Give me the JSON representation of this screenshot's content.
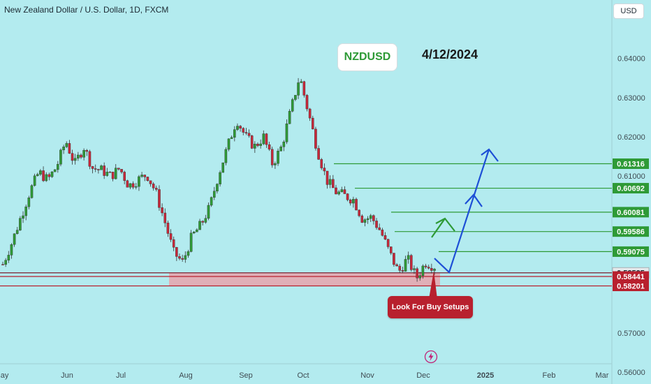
{
  "header": {
    "title": "New Zealand Dollar / U.S. Dollar, 1D, FXCM",
    "currency_button": "USD"
  },
  "annotations": {
    "symbol_label": "NZDUSD",
    "date_label": "4/12/2024",
    "callout": "Look For Buy Setups",
    "callout_color": "#b8202e",
    "target_line_color": "#2e9a36",
    "support_zone_color": "#e8a4ad",
    "projection_arrow_color": "#1d4fd6",
    "bolt_icon": "lightning-bolt-icon"
  },
  "chart_data": {
    "type": "candlestick",
    "y_axis": {
      "ylim": [
        0.5595,
        0.6435
      ],
      "tick_labels": [
        "0.64000",
        "0.63000",
        "0.62000",
        "0.61000",
        "0.57000",
        "0.56000"
      ],
      "tick_values": [
        0.64,
        0.63,
        0.62,
        0.61,
        0.57,
        0.56
      ]
    },
    "x_axis": {
      "tick_labels": [
        "May",
        "Jun",
        "Jul",
        "Aug",
        "Sep",
        "Oct",
        "Nov",
        "Dec",
        "2025",
        "Feb",
        "Mar"
      ]
    },
    "price_levels": [
      {
        "label": "0.61316",
        "value": 0.61316,
        "kind": "target"
      },
      {
        "label": "0.60692",
        "value": 0.60692,
        "kind": "target"
      },
      {
        "label": "0.60081",
        "value": 0.60081,
        "kind": "target"
      },
      {
        "label": "0.59586",
        "value": 0.59586,
        "kind": "target"
      },
      {
        "label": "0.59075",
        "value": 0.59075,
        "kind": "target"
      },
      {
        "label": "0.58535",
        "value": 0.58535,
        "kind": "current"
      },
      {
        "label": "0.58441",
        "value": 0.58441,
        "kind": "support"
      },
      {
        "label": "0.58201",
        "value": 0.58201,
        "kind": "support"
      }
    ],
    "support_zone": [
      0.58201,
      0.58535
    ],
    "candle_path": [
      [
        0.5875,
        "Apr 30"
      ],
      [
        0.593,
        "May 3"
      ],
      [
        0.5995,
        "May 8"
      ],
      [
        0.606,
        "May 14"
      ],
      [
        0.611,
        "May 17"
      ],
      [
        0.609,
        "May 22"
      ],
      [
        0.6125,
        "May 28"
      ],
      [
        0.619,
        "Jun 3"
      ],
      [
        0.613,
        "Jun 7"
      ],
      [
        0.6175,
        "Jun 12"
      ],
      [
        0.612,
        "Jun 18"
      ],
      [
        0.6115,
        "Jun 21"
      ],
      [
        0.61,
        "Jun 26"
      ],
      [
        0.612,
        "Jul 1"
      ],
      [
        0.6075,
        "Jul 5"
      ],
      [
        0.609,
        "Jul 10"
      ],
      [
        0.6105,
        "Jul 15"
      ],
      [
        0.606,
        "Jul 18"
      ],
      [
        0.5985,
        "Jul 24"
      ],
      [
        0.5905,
        "Jul 29"
      ],
      [
        0.588,
        "Aug 2"
      ],
      [
        0.5945,
        "Aug 6"
      ],
      [
        0.5975,
        "Aug 12"
      ],
      [
        0.602,
        "Aug 16"
      ],
      [
        0.6105,
        "Aug 21"
      ],
      [
        0.6175,
        "Aug 26"
      ],
      [
        0.6245,
        "Aug 30"
      ],
      [
        0.62,
        "Sep 4"
      ],
      [
        0.6175,
        "Sep 9"
      ],
      [
        0.62,
        "Sep 12"
      ],
      [
        0.613,
        "Sep 17"
      ],
      [
        0.6175,
        "Sep 20"
      ],
      [
        0.6265,
        "Sep 25"
      ],
      [
        0.6355,
        "Sep 30"
      ],
      [
        0.626,
        "Oct 4"
      ],
      [
        0.6165,
        "Oct 9"
      ],
      [
        0.609,
        "Oct 14"
      ],
      [
        0.606,
        "Oct 18"
      ],
      [
        0.605,
        "Oct 23"
      ],
      [
        0.604,
        "Oct 28"
      ],
      [
        0.599,
        "Nov 1"
      ],
      [
        0.5995,
        "Nov 6"
      ],
      [
        0.596,
        "Nov 11"
      ],
      [
        0.5905,
        "Nov 15"
      ],
      [
        0.5855,
        "Nov 20"
      ],
      [
        0.589,
        "Nov 25"
      ],
      [
        0.584,
        "Nov 29"
      ],
      [
        0.588,
        "Dec 3"
      ],
      [
        0.587,
        "Dec 4"
      ]
    ]
  }
}
